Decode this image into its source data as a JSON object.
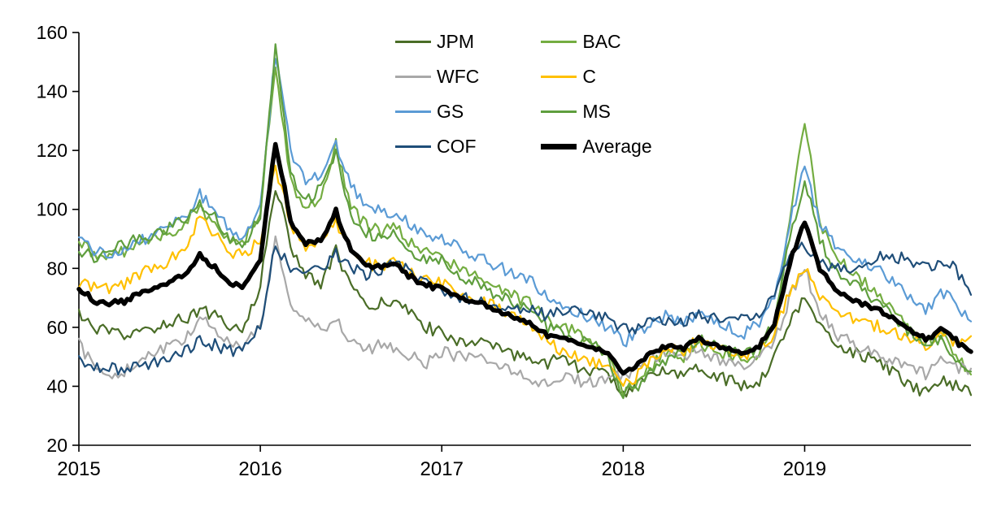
{
  "chart_data": {
    "type": "line",
    "title": "",
    "xlabel": "",
    "ylabel": "",
    "grid": false,
    "legend_position": "top-center-inside",
    "ylim": [
      20,
      160
    ],
    "yticks": [
      20,
      40,
      60,
      80,
      100,
      120,
      140,
      160
    ],
    "x_unit": "year",
    "x_start_year": 2015,
    "x_months_per_point": 1,
    "x_tick_labels": [
      "2015",
      "2016",
      "2017",
      "2018",
      "2019"
    ],
    "series": [
      {
        "name": "JPM",
        "color": "#4a6d27",
        "values": [
          64,
          60,
          58,
          57,
          58,
          60,
          62,
          63,
          66,
          64,
          60,
          60,
          75,
          108,
          88,
          78,
          74,
          86,
          74,
          66,
          68,
          70,
          64,
          60,
          58,
          56,
          55,
          54,
          52,
          50,
          50,
          48,
          50,
          46,
          45,
          44,
          38,
          40,
          45,
          46,
          44,
          47,
          44,
          42,
          40,
          42,
          50,
          62,
          70,
          60,
          55,
          52,
          50,
          48,
          44,
          40,
          38,
          42,
          40,
          37
        ]
      },
      {
        "name": "BAC",
        "color": "#74ad41",
        "values": [
          89,
          85,
          84,
          86,
          88,
          90,
          92,
          95,
          100,
          96,
          88,
          90,
          100,
          150,
          110,
          100,
          105,
          122,
          100,
          95,
          92,
          95,
          88,
          85,
          85,
          80,
          78,
          75,
          72,
          70,
          68,
          62,
          60,
          58,
          55,
          52,
          38,
          42,
          48,
          52,
          50,
          55,
          52,
          50,
          48,
          52,
          60,
          95,
          131,
          95,
          85,
          80,
          75,
          70,
          65,
          60,
          55,
          58,
          50,
          44
        ]
      },
      {
        "name": "WFC",
        "color": "#a8a8a8",
        "values": [
          55,
          46,
          43,
          45,
          48,
          52,
          54,
          56,
          63,
          60,
          55,
          54,
          60,
          92,
          68,
          62,
          60,
          62,
          56,
          52,
          54,
          52,
          50,
          48,
          52,
          50,
          50,
          48,
          46,
          44,
          42,
          40,
          44,
          42,
          41,
          42,
          44,
          46,
          50,
          52,
          50,
          53,
          50,
          48,
          46,
          50,
          55,
          70,
          80,
          65,
          58,
          55,
          52,
          50,
          48,
          46,
          44,
          50,
          46,
          46
        ]
      },
      {
        "name": "C",
        "color": "#ffc000",
        "values": [
          75,
          74,
          73,
          75,
          78,
          80,
          83,
          86,
          98,
          92,
          84,
          85,
          90,
          115,
          95,
          88,
          90,
          96,
          86,
          82,
          80,
          82,
          78,
          76,
          75,
          72,
          70,
          68,
          66,
          64,
          60,
          55,
          52,
          50,
          48,
          46,
          40,
          44,
          50,
          53,
          52,
          56,
          54,
          52,
          50,
          53,
          58,
          72,
          80,
          70,
          66,
          63,
          62,
          60,
          58,
          56,
          54,
          58,
          55,
          57
        ]
      },
      {
        "name": "GS",
        "color": "#5b9bd5",
        "values": [
          90,
          86,
          85,
          87,
          89,
          92,
          94,
          97,
          105,
          100,
          92,
          90,
          102,
          153,
          120,
          110,
          112,
          122,
          108,
          102,
          100,
          98,
          95,
          92,
          90,
          88,
          85,
          82,
          80,
          78,
          75,
          70,
          68,
          65,
          62,
          60,
          55,
          58,
          62,
          64,
          62,
          65,
          62,
          60,
          58,
          62,
          70,
          95,
          115,
          95,
          88,
          85,
          82,
          80,
          75,
          70,
          65,
          72,
          68,
          62
        ]
      },
      {
        "name": "MS",
        "color": "#5f9e3e",
        "values": [
          86,
          84,
          86,
          88,
          90,
          92,
          94,
          96,
          102,
          98,
          90,
          88,
          98,
          154,
          112,
          102,
          108,
          120,
          98,
          92,
          90,
          92,
          86,
          82,
          84,
          78,
          76,
          73,
          70,
          68,
          66,
          60,
          58,
          56,
          54,
          50,
          37,
          40,
          46,
          50,
          52,
          56,
          54,
          52,
          50,
          54,
          62,
          90,
          110,
          90,
          80,
          76,
          72,
          68,
          62,
          58,
          52,
          56,
          48,
          45
        ]
      },
      {
        "name": "COF",
        "color": "#1f4e79",
        "values": [
          49,
          47,
          46,
          46,
          47,
          48,
          50,
          52,
          55,
          54,
          52,
          53,
          60,
          88,
          80,
          78,
          80,
          85,
          80,
          78,
          80,
          82,
          78,
          76,
          72,
          70,
          70,
          68,
          67,
          66,
          66,
          64,
          66,
          65,
          64,
          63,
          60,
          60,
          62,
          63,
          62,
          64,
          63,
          62,
          63,
          65,
          70,
          85,
          88,
          82,
          80,
          80,
          82,
          85,
          84,
          83,
          80,
          82,
          80,
          71
        ]
      },
      {
        "name": "Average",
        "color": "#000000",
        "derived": "mean_of_series",
        "thick": true
      }
    ]
  }
}
